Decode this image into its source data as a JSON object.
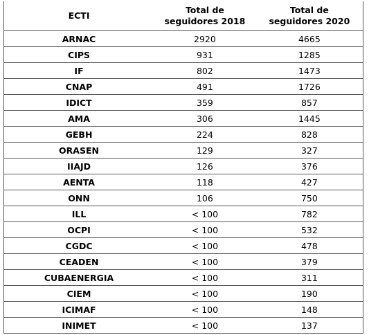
{
  "table": {
    "header": [
      "ECTI",
      "Total de\nseguidores 2018",
      "Total de\nseguidores 2020"
    ],
    "rows": [
      [
        "ARNAC",
        2920,
        4665
      ],
      [
        "CIPS",
        931,
        1285
      ],
      [
        "IF",
        802,
        1473
      ],
      [
        "CNAP",
        491,
        1726
      ],
      [
        "IDICT",
        359,
        857
      ],
      [
        "AMA",
        306,
        1445
      ],
      [
        "GEBH",
        224,
        828
      ],
      [
        "ORASEN",
        129,
        327
      ],
      [
        "IIAJD",
        126,
        376
      ],
      [
        "AENTA",
        118,
        427
      ],
      [
        "ONN",
        106,
        750
      ],
      [
        "ILL",
        "< 100",
        782
      ],
      [
        "OCPI",
        "< 100",
        532
      ],
      [
        "CGDC",
        "< 100",
        478
      ],
      [
        "CEADEN",
        "< 100",
        379
      ],
      [
        "CUBAENERGIA",
        "< 100",
        311
      ],
      [
        "CIEM",
        "< 100",
        190
      ],
      [
        "ICIMAF",
        "< 100",
        148
      ],
      [
        "INIMET",
        "< 100",
        137
      ]
    ]
  }
}
